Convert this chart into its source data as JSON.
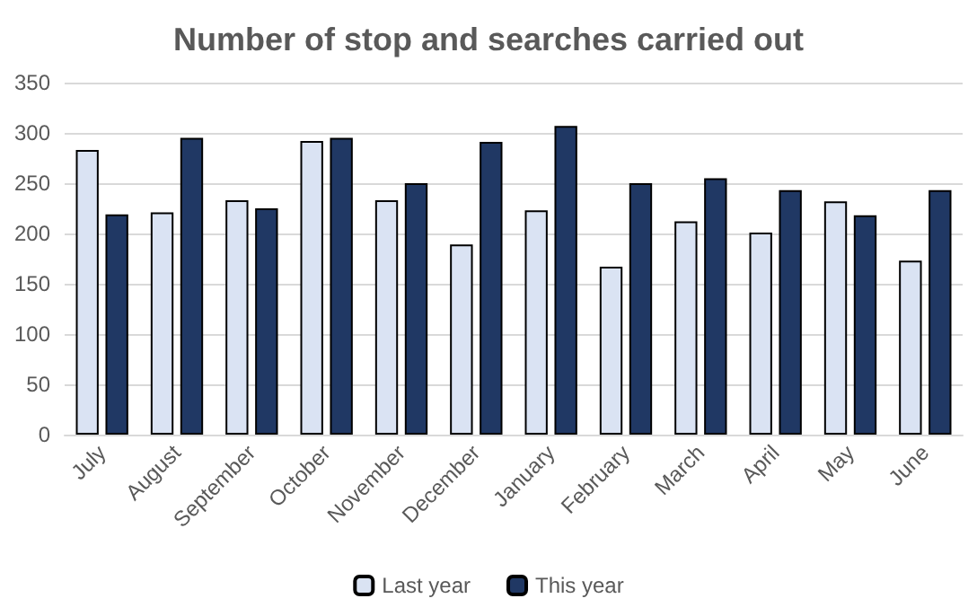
{
  "chart_data": {
    "type": "bar",
    "title": "Number of stop and searches carried out",
    "categories": [
      "July",
      "August",
      "September",
      "October",
      "November",
      "December",
      "January",
      "February",
      "March",
      "April",
      "May",
      "June"
    ],
    "series": [
      {
        "name": "Last year",
        "color": "#dae3f3",
        "values": [
          283,
          221,
          233,
          292,
          233,
          189,
          223,
          167,
          212,
          201,
          232,
          173
        ]
      },
      {
        "name": "This year",
        "color": "#203864",
        "values": [
          219,
          295,
          225,
          295,
          250,
          291,
          307,
          250,
          255,
          243,
          218,
          243
        ]
      }
    ],
    "ylim": [
      0,
      350
    ],
    "yticks": [
      0,
      50,
      100,
      150,
      200,
      250,
      300,
      350
    ],
    "grid": "y",
    "legend": "bottom"
  }
}
